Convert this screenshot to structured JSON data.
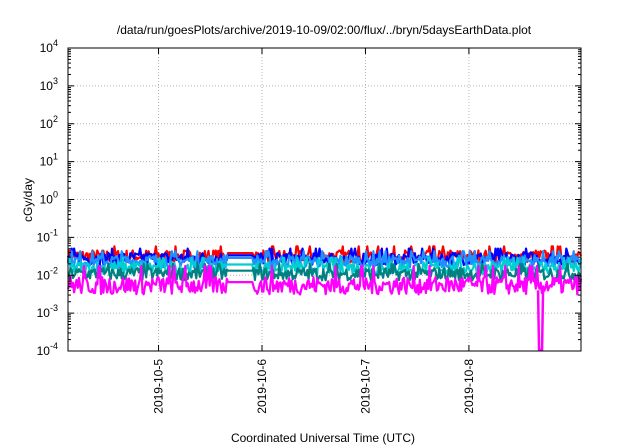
{
  "chart_data": {
    "type": "line",
    "title": "/data/run/goesPlots/archive/2019-10-09/02:00/flux/../bryn/5daysEarthData.plot",
    "xlabel": "Coordinated Universal Time (UTC)",
    "ylabel": "cGy/day",
    "yscale": "log",
    "ylim": [
      0.0001,
      10000
    ],
    "y_ticks": [
      {
        "base": "10",
        "exp": "-4",
        "value": 0.0001
      },
      {
        "base": "10",
        "exp": "-3",
        "value": 0.001
      },
      {
        "base": "10",
        "exp": "-2",
        "value": 0.01
      },
      {
        "base": "10",
        "exp": "-1",
        "value": 0.1
      },
      {
        "base": "10",
        "exp": "0",
        "value": 1
      },
      {
        "base": "10",
        "exp": "1",
        "value": 10
      },
      {
        "base": "10",
        "exp": "2",
        "value": 100
      },
      {
        "base": "10",
        "exp": "3",
        "value": 1000
      },
      {
        "base": "10",
        "exp": "4",
        "value": 10000
      }
    ],
    "x_ticks": [
      "2019-10-5",
      "2019-10-6",
      "2019-10-7",
      "2019-10-8"
    ],
    "xlim": [
      "2019-10-04T03:00",
      "2019-10-09T02:00"
    ],
    "grid": true,
    "series": [
      {
        "color": "#ff0000",
        "level": 0.032
      },
      {
        "color": "#0000ff",
        "level": 0.028
      },
      {
        "color": "#1e90ff",
        "level": 0.024
      },
      {
        "color": "#00ced1",
        "level": 0.016
      },
      {
        "color": "#008080",
        "level": 0.011
      },
      {
        "color": "#ff00ff",
        "level": 0.0055
      }
    ]
  }
}
